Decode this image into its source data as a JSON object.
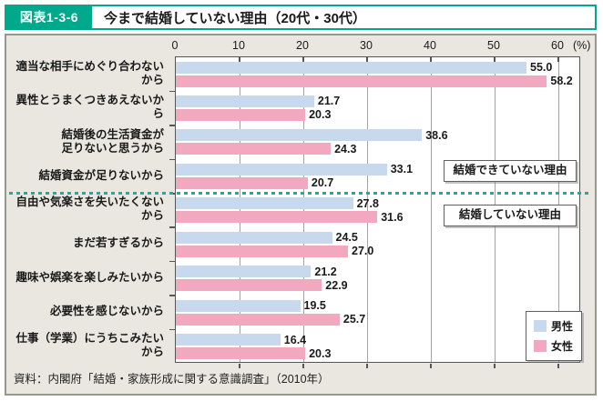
{
  "header": {
    "badge": "図表1-3-6",
    "title": "今まで結婚していない理由（20代・30代）"
  },
  "annotations": {
    "upper_box": "結婚できていない理由",
    "lower_box": "結婚していない理由"
  },
  "legend": [
    {
      "label": "男性",
      "color": "#c8d8ed"
    },
    {
      "label": "女性",
      "color": "#f2a8bf"
    }
  ],
  "footer": {
    "source": "資料：内閣府「結婚・家族形成に関する意識調査」（2010年）"
  },
  "colors": {
    "accent_teal": "#00a98c",
    "separator_teal": "#29a797",
    "male_bar": "#c8d8ed",
    "female_bar": "#f2a8bf",
    "frame_background": "#e9e7e0",
    "plot_background": "#ffffff",
    "gridline": "#a3a29c"
  },
  "chart_data": {
    "type": "bar",
    "orientation": "horizontal",
    "title": "今まで結婚していない理由（20代・30代）",
    "unit_label": "(%)",
    "xlim": [
      0,
      63.5
    ],
    "x_ticks": [
      0,
      10,
      20,
      30,
      40,
      50,
      60
    ],
    "grid": true,
    "legend_position": "bottom-right",
    "categories": [
      "適当な相手にめぐり合わないから",
      "異性とうまくつきあえないから",
      "結婚後の生活資金が\n足りないと思うから",
      "結婚資金が足りないから",
      "自由や気楽さを失いたくないから",
      "まだ若すぎるから",
      "趣味や娯楽を楽しみたいから",
      "必要性を感じないから",
      "仕事（学業）にうちこみたいから"
    ],
    "series": [
      {
        "name": "男性",
        "color": "#c8d8ed",
        "values": [
          55.0,
          21.7,
          38.6,
          33.1,
          27.8,
          24.5,
          21.2,
          19.5,
          16.4
        ]
      },
      {
        "name": "女性",
        "color": "#f2a8bf",
        "values": [
          58.2,
          20.3,
          24.3,
          20.7,
          31.6,
          27.0,
          22.9,
          25.7,
          20.3
        ]
      }
    ],
    "group_separator_after_index": 3,
    "group_labels": {
      "upper": "結婚できていない理由",
      "lower": "結婚していない理由"
    }
  }
}
